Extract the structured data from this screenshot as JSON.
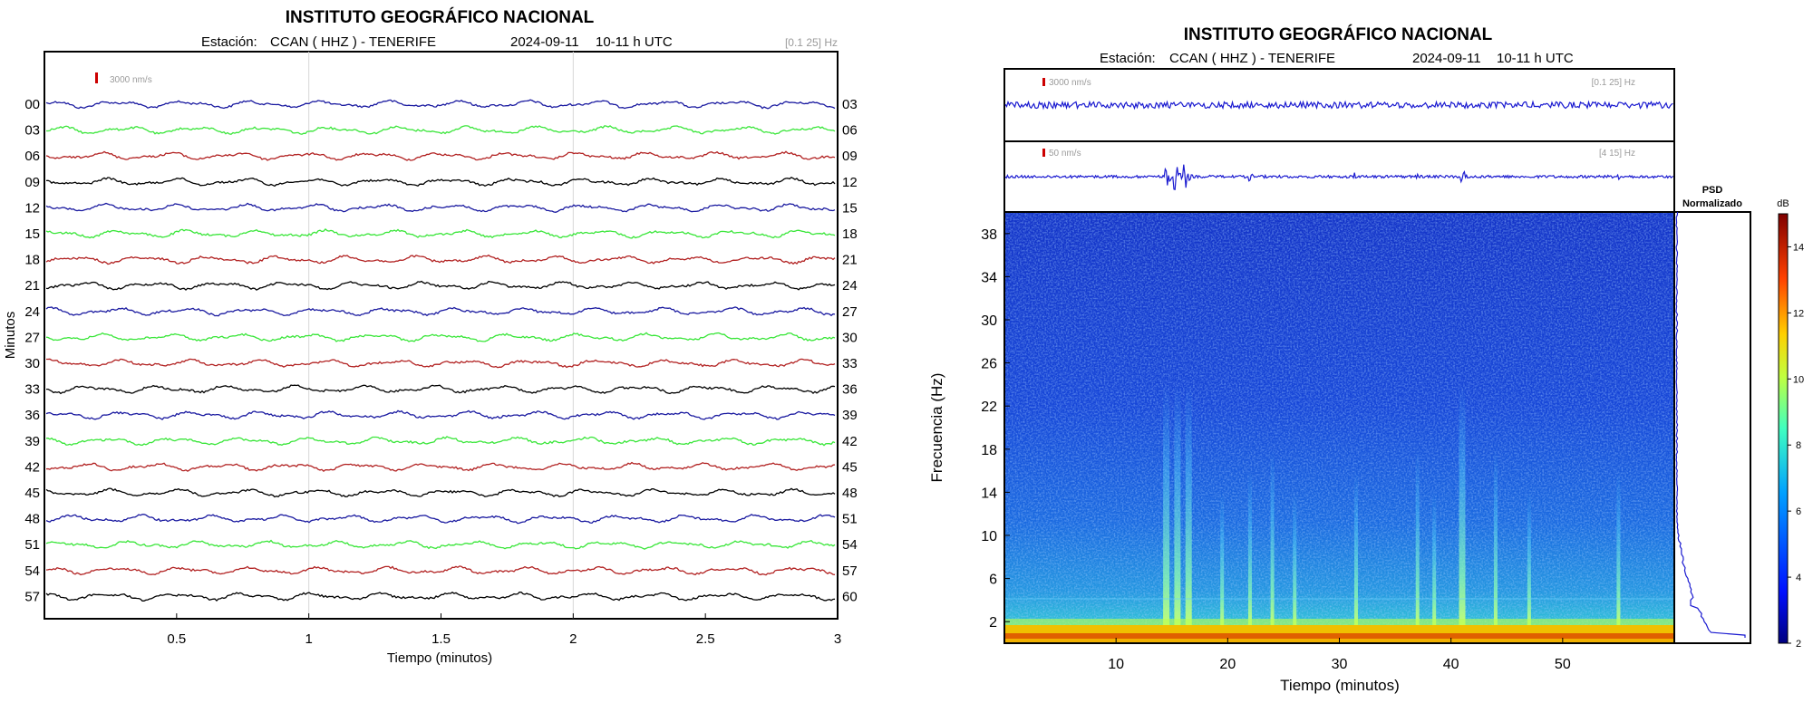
{
  "chart_data": [
    {
      "type": "line",
      "title": "INSTITUTO GEOGRÁFICO NACIONAL",
      "station_label": "Estación:",
      "station": "CCAN ( HHZ ) - TENERIFE",
      "date": "2024-09-11",
      "time": "10-11 h UTC",
      "filter": "[0.1 25] Hz",
      "scale_label": "3000 nm/s",
      "xlabel": "Tiempo (minutos)",
      "ylabel": "Minutos",
      "xlim": [
        0,
        3
      ],
      "xticks": [
        "0.5",
        "1",
        "1.5",
        "2",
        "2.5",
        "3"
      ],
      "left_labels": [
        "00",
        "03",
        "06",
        "09",
        "12",
        "15",
        "18",
        "21",
        "24",
        "27",
        "30",
        "33",
        "36",
        "39",
        "42",
        "45",
        "48",
        "51",
        "54",
        "57"
      ],
      "right_labels": [
        "03",
        "06",
        "09",
        "12",
        "15",
        "18",
        "21",
        "24",
        "27",
        "30",
        "33",
        "36",
        "39",
        "42",
        "45",
        "48",
        "51",
        "54",
        "57",
        "60"
      ],
      "trace_colors": [
        "#1a1aa0",
        "#39e639",
        "#b22222",
        "#000000"
      ],
      "scale_color": "#cc0000"
    },
    {
      "type": "heatmap",
      "title": "INSTITUTO GEOGRÁFICO NACIONAL",
      "station_label": "Estación:",
      "station": "CCAN ( HHZ ) - TENERIFE",
      "date": "2024-09-11",
      "time": "10-11 h UTC",
      "trace1_scale": "3000 nm/s",
      "trace1_filter": "[0.1 25] Hz",
      "trace2_scale": "50 nm/s",
      "trace2_filter": "[4 15] Hz",
      "xlabel": "Tiempo (minutos)",
      "ylabel": "Frecuencia (Hz)",
      "xlim": [
        0,
        60
      ],
      "ylim": [
        0,
        40
      ],
      "xticks": [
        "10",
        "20",
        "30",
        "40",
        "50"
      ],
      "yticks": [
        "2",
        "6",
        "10",
        "14",
        "18",
        "22",
        "26",
        "30",
        "34",
        "38"
      ],
      "events_minutes": [
        14.5,
        15.5,
        16.5,
        19.5,
        22,
        24,
        26,
        31.5,
        37,
        38.5,
        41,
        44,
        47,
        55
      ],
      "psd_title": "PSD",
      "psd_subtitle": "Normalizado",
      "colorbar_label": "dB",
      "colorbar_ticks": [
        "2",
        "4",
        "6",
        "8",
        "10",
        "12",
        "14"
      ],
      "colorbar_range": [
        2,
        15
      ]
    }
  ]
}
